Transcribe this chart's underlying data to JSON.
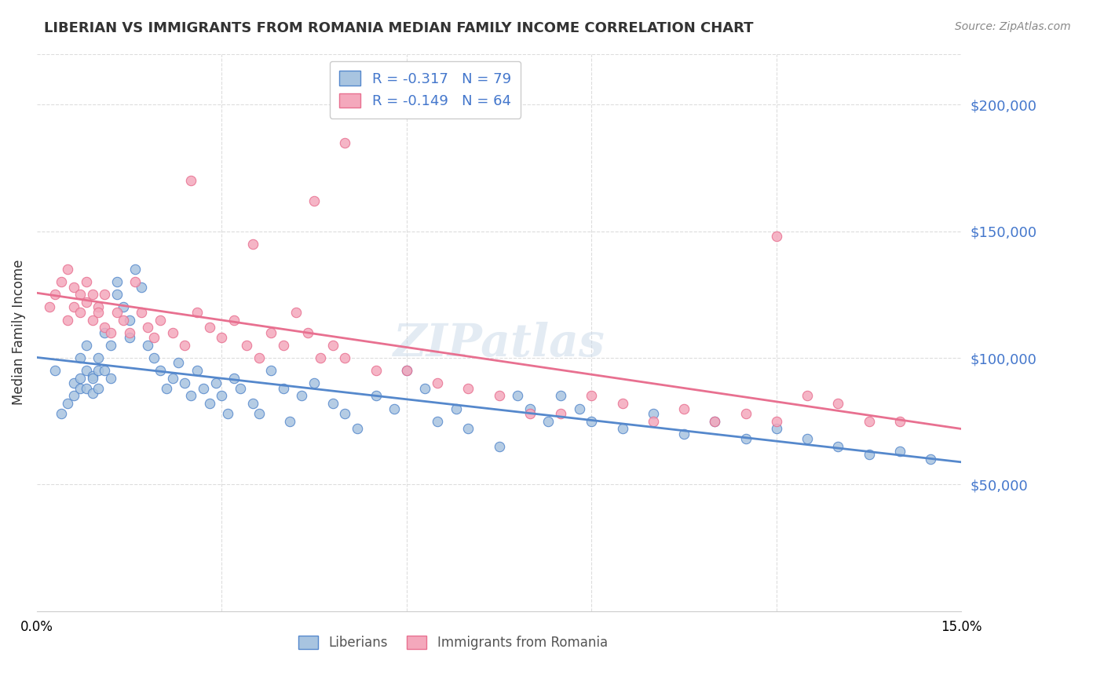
{
  "title": "LIBERIAN VS IMMIGRANTS FROM ROMANIA MEDIAN FAMILY INCOME CORRELATION CHART",
  "source": "Source: ZipAtlas.com",
  "xlabel_ticks": [
    "0.0%",
    "15.0%"
  ],
  "ylabel_label": "Median Family Income",
  "ytick_labels": [
    "$50,000",
    "$100,000",
    "$150,000",
    "$200,000"
  ],
  "ytick_values": [
    50000,
    100000,
    150000,
    200000
  ],
  "xlim": [
    0.0,
    0.15
  ],
  "ylim": [
    0,
    220000
  ],
  "legend_entries": [
    {
      "label": "R = -0.317   N = 79",
      "color": "#a8c4e0"
    },
    {
      "label": "R = -0.149   N = 64",
      "color": "#f4b8c8"
    }
  ],
  "legend_label_blue": "Liberians",
  "legend_label_pink": "Immigrants from Romania",
  "watermark": "ZIPatlas",
  "blue_scatter_color": "#a8c4e0",
  "pink_scatter_color": "#f4a8bc",
  "blue_line_color": "#5588cc",
  "pink_line_color": "#e87090",
  "blue_R": -0.317,
  "blue_N": 79,
  "pink_R": -0.149,
  "pink_N": 64,
  "blue_x": [
    0.003,
    0.004,
    0.005,
    0.006,
    0.006,
    0.007,
    0.007,
    0.007,
    0.008,
    0.008,
    0.008,
    0.009,
    0.009,
    0.009,
    0.01,
    0.01,
    0.01,
    0.011,
    0.011,
    0.012,
    0.012,
    0.013,
    0.013,
    0.014,
    0.015,
    0.015,
    0.016,
    0.017,
    0.018,
    0.019,
    0.02,
    0.021,
    0.022,
    0.023,
    0.024,
    0.025,
    0.026,
    0.027,
    0.028,
    0.029,
    0.03,
    0.031,
    0.032,
    0.033,
    0.035,
    0.036,
    0.038,
    0.04,
    0.041,
    0.043,
    0.045,
    0.048,
    0.05,
    0.052,
    0.055,
    0.058,
    0.06,
    0.063,
    0.065,
    0.068,
    0.07,
    0.075,
    0.078,
    0.08,
    0.083,
    0.085,
    0.088,
    0.09,
    0.095,
    0.1,
    0.105,
    0.11,
    0.115,
    0.12,
    0.125,
    0.13,
    0.135,
    0.14,
    0.145
  ],
  "blue_y": [
    95000,
    78000,
    82000,
    90000,
    85000,
    100000,
    92000,
    88000,
    105000,
    95000,
    88000,
    93000,
    86000,
    92000,
    100000,
    95000,
    88000,
    110000,
    95000,
    105000,
    92000,
    130000,
    125000,
    120000,
    115000,
    108000,
    135000,
    128000,
    105000,
    100000,
    95000,
    88000,
    92000,
    98000,
    90000,
    85000,
    95000,
    88000,
    82000,
    90000,
    85000,
    78000,
    92000,
    88000,
    82000,
    78000,
    95000,
    88000,
    75000,
    85000,
    90000,
    82000,
    78000,
    72000,
    85000,
    80000,
    95000,
    88000,
    75000,
    80000,
    72000,
    65000,
    85000,
    80000,
    75000,
    85000,
    80000,
    75000,
    72000,
    78000,
    70000,
    75000,
    68000,
    72000,
    68000,
    65000,
    62000,
    63000,
    60000
  ],
  "pink_x": [
    0.002,
    0.003,
    0.004,
    0.005,
    0.005,
    0.006,
    0.006,
    0.007,
    0.007,
    0.008,
    0.008,
    0.009,
    0.009,
    0.01,
    0.01,
    0.011,
    0.011,
    0.012,
    0.013,
    0.014,
    0.015,
    0.016,
    0.017,
    0.018,
    0.019,
    0.02,
    0.022,
    0.024,
    0.026,
    0.028,
    0.03,
    0.032,
    0.034,
    0.036,
    0.038,
    0.04,
    0.042,
    0.044,
    0.046,
    0.048,
    0.05,
    0.055,
    0.06,
    0.065,
    0.07,
    0.075,
    0.08,
    0.085,
    0.09,
    0.095,
    0.1,
    0.105,
    0.11,
    0.115,
    0.12,
    0.125,
    0.13,
    0.135,
    0.14,
    0.12,
    0.05,
    0.045,
    0.035,
    0.025
  ],
  "pink_y": [
    120000,
    125000,
    130000,
    115000,
    135000,
    128000,
    120000,
    125000,
    118000,
    130000,
    122000,
    115000,
    125000,
    120000,
    118000,
    125000,
    112000,
    110000,
    118000,
    115000,
    110000,
    130000,
    118000,
    112000,
    108000,
    115000,
    110000,
    105000,
    118000,
    112000,
    108000,
    115000,
    105000,
    100000,
    110000,
    105000,
    118000,
    110000,
    100000,
    105000,
    100000,
    95000,
    95000,
    90000,
    88000,
    85000,
    78000,
    78000,
    85000,
    82000,
    75000,
    80000,
    75000,
    78000,
    75000,
    85000,
    82000,
    75000,
    75000,
    148000,
    185000,
    162000,
    145000,
    170000
  ]
}
